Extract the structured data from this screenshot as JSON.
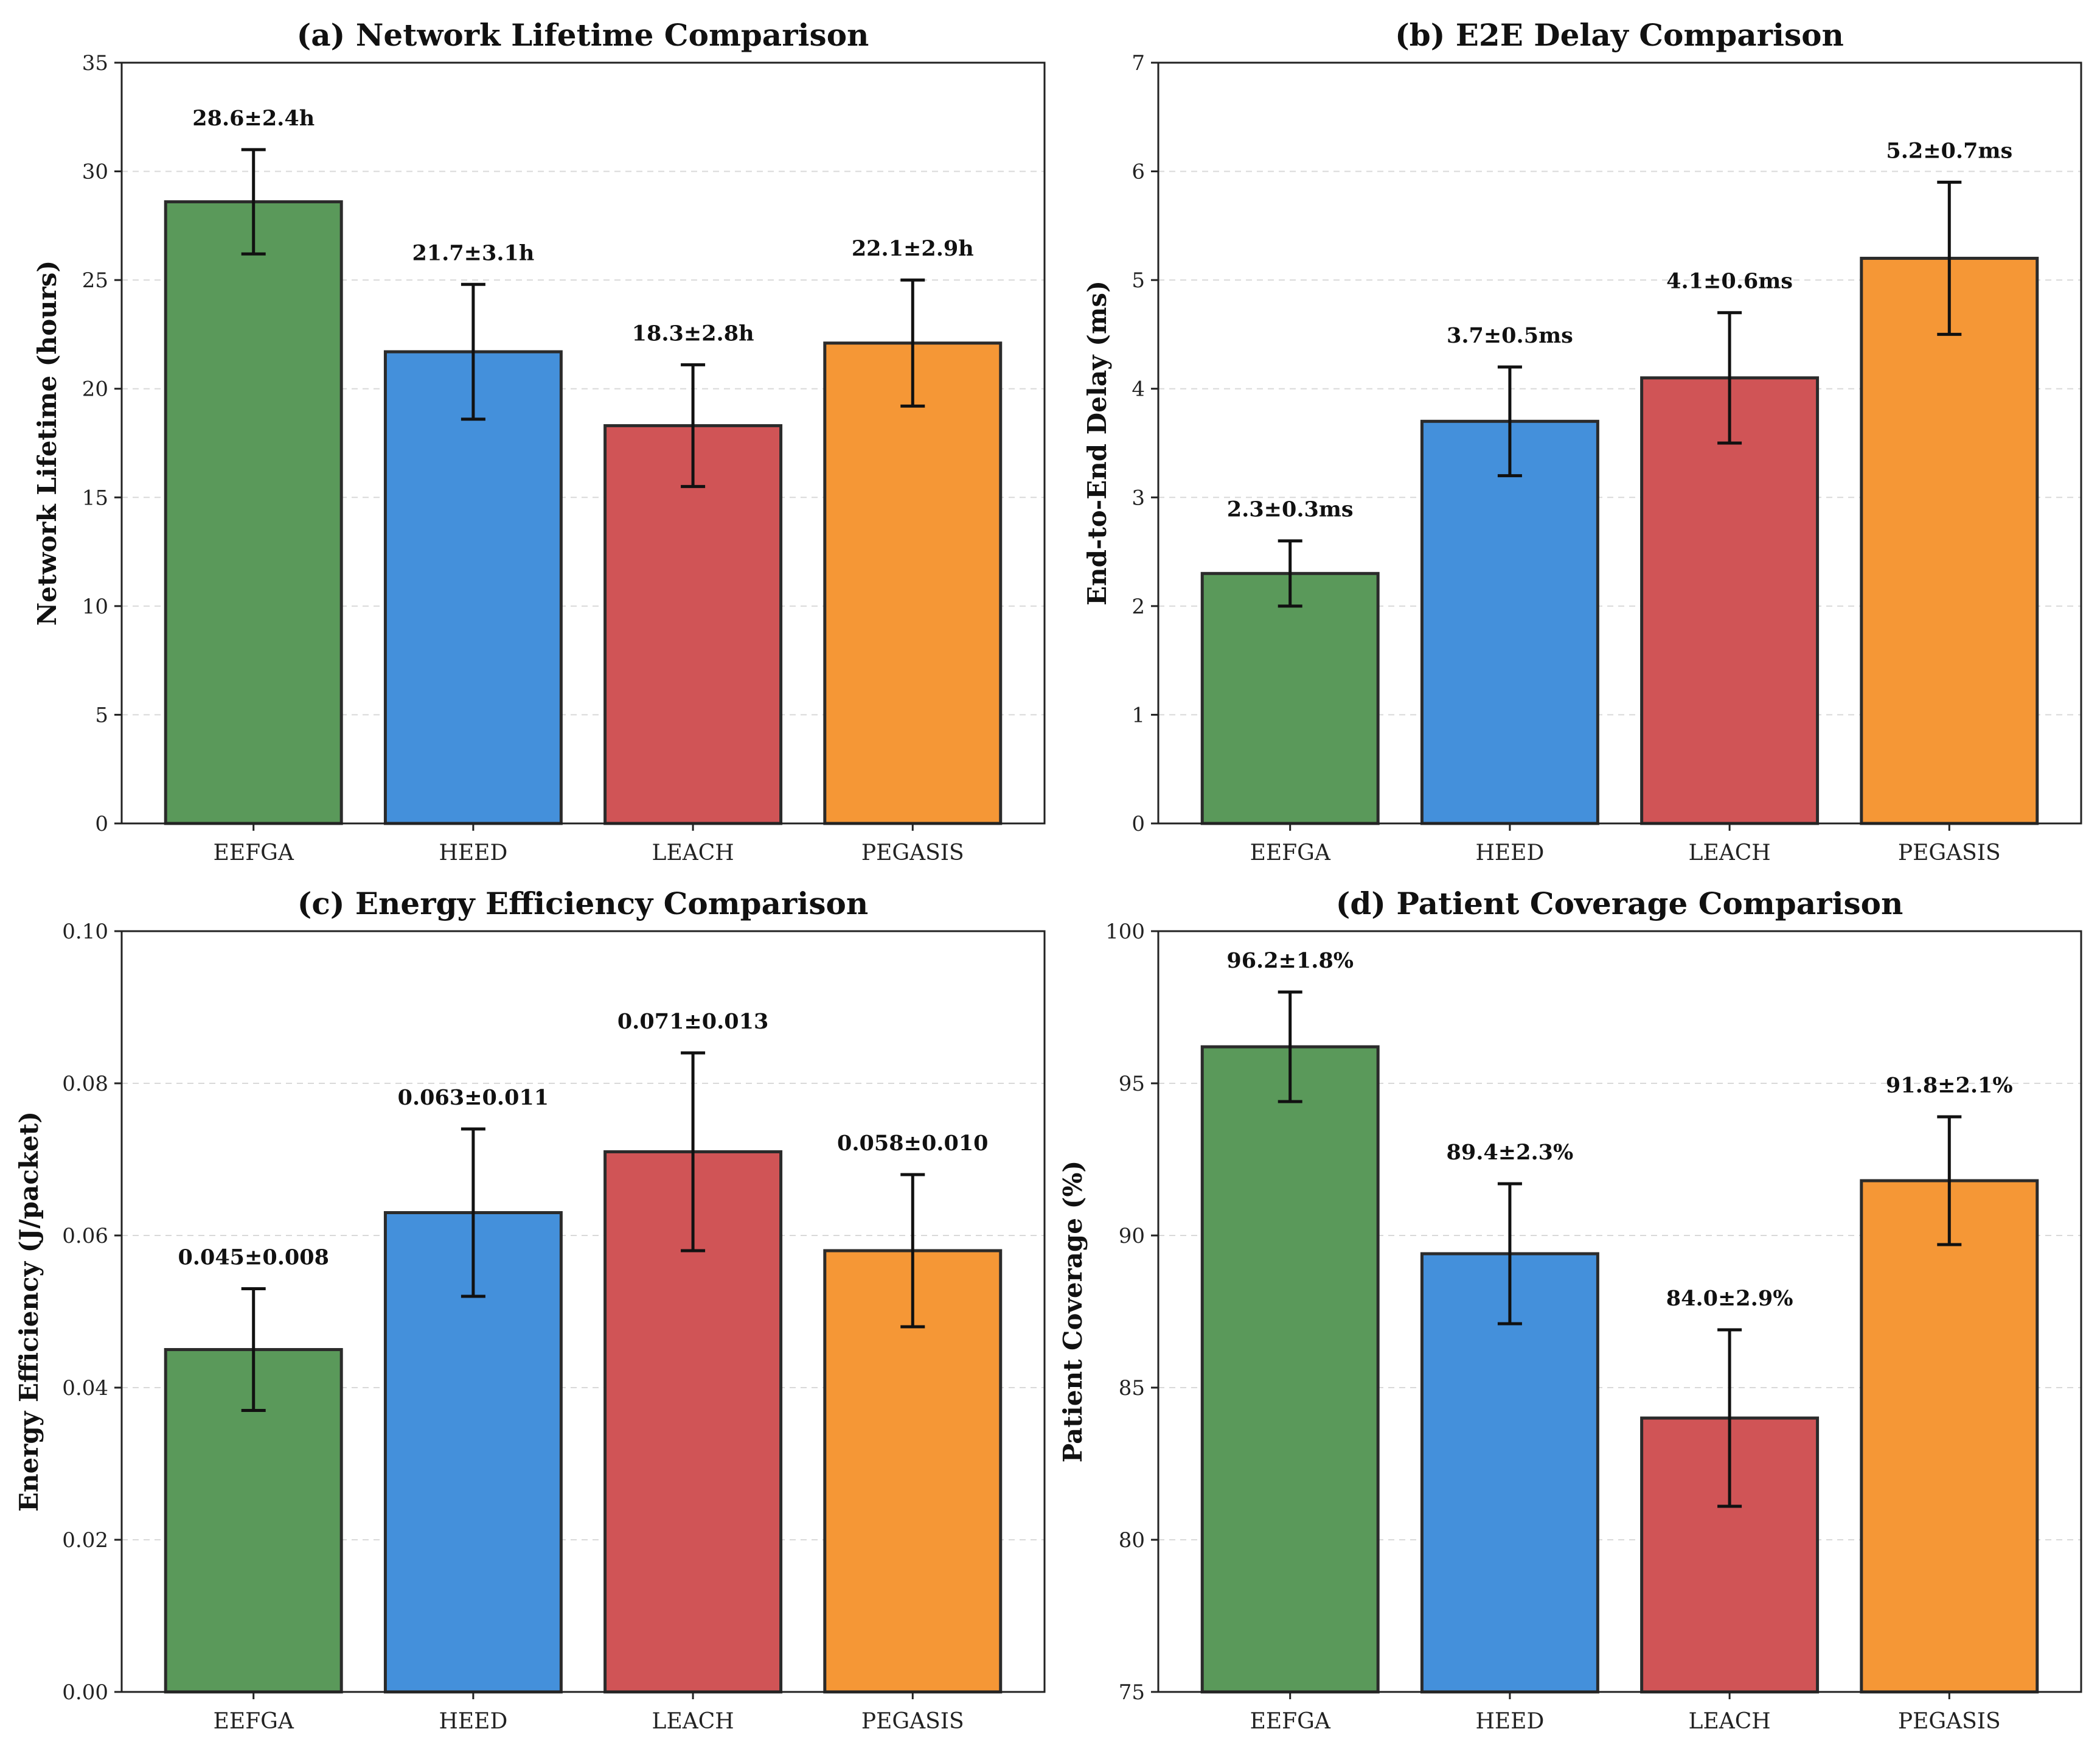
{
  "colors": {
    "EEFGA": "#5a995a",
    "HEED": "#4490db",
    "LEACH": "#d05456",
    "PEGASIS": "#f59736"
  },
  "chart_data": [
    {
      "type": "bar",
      "title": "(a) Network Lifetime Comparison",
      "xlabel": "",
      "ylabel": "Network Lifetime (hours)",
      "categories": [
        "EEFGA",
        "HEED",
        "LEACH",
        "PEGASIS"
      ],
      "values": [
        28.6,
        21.7,
        18.3,
        22.1
      ],
      "errors": [
        2.4,
        3.1,
        2.8,
        2.9
      ],
      "labels": [
        "28.6±2.4h",
        "21.7±3.1h",
        "18.3±2.8h",
        "22.1±2.9h"
      ],
      "ylim": [
        0,
        35
      ],
      "yticks": [
        0,
        5,
        10,
        15,
        20,
        25,
        30,
        35
      ],
      "ytick_labels": [
        "0",
        "5",
        "10",
        "15",
        "20",
        "25",
        "30",
        "35"
      ],
      "grid": true
    },
    {
      "type": "bar",
      "title": "(b) E2E Delay Comparison",
      "xlabel": "",
      "ylabel": "End-to-End Delay (ms)",
      "categories": [
        "EEFGA",
        "HEED",
        "LEACH",
        "PEGASIS"
      ],
      "values": [
        2.3,
        3.7,
        4.1,
        5.2
      ],
      "errors": [
        0.3,
        0.5,
        0.6,
        0.7
      ],
      "labels": [
        "2.3±0.3ms",
        "3.7±0.5ms",
        "4.1±0.6ms",
        "5.2±0.7ms"
      ],
      "ylim": [
        0,
        7
      ],
      "yticks": [
        0,
        1,
        2,
        3,
        4,
        5,
        6,
        7
      ],
      "ytick_labels": [
        "0",
        "1",
        "2",
        "3",
        "4",
        "5",
        "6",
        "7"
      ],
      "grid": true
    },
    {
      "type": "bar",
      "title": "(c) Energy Efficiency Comparison",
      "xlabel": "",
      "ylabel": "Energy Efficiency (J/packet)",
      "categories": [
        "EEFGA",
        "HEED",
        "LEACH",
        "PEGASIS"
      ],
      "values": [
        0.045,
        0.063,
        0.071,
        0.058
      ],
      "errors": [
        0.008,
        0.011,
        0.013,
        0.01
      ],
      "labels": [
        "0.045±0.008",
        "0.063±0.011",
        "0.071±0.013",
        "0.058±0.010"
      ],
      "ylim": [
        0,
        0.1
      ],
      "yticks": [
        0,
        0.02,
        0.04,
        0.06,
        0.08,
        0.1
      ],
      "ytick_labels": [
        "0.00",
        "0.02",
        "0.04",
        "0.06",
        "0.08",
        "0.10"
      ],
      "grid": true
    },
    {
      "type": "bar",
      "title": "(d) Patient Coverage Comparison",
      "xlabel": "",
      "ylabel": "Patient Coverage (%)",
      "categories": [
        "EEFGA",
        "HEED",
        "LEACH",
        "PEGASIS"
      ],
      "values": [
        96.2,
        89.4,
        84.0,
        91.8
      ],
      "errors": [
        1.8,
        2.3,
        2.9,
        2.1
      ],
      "labels": [
        "96.2±1.8%",
        "89.4±2.3%",
        "84.0±2.9%",
        "91.8±2.1%"
      ],
      "ylim": [
        75,
        100
      ],
      "yticks": [
        75,
        80,
        85,
        90,
        95,
        100
      ],
      "ytick_labels": [
        "75",
        "80",
        "85",
        "90",
        "95",
        "100"
      ],
      "grid": true
    }
  ]
}
